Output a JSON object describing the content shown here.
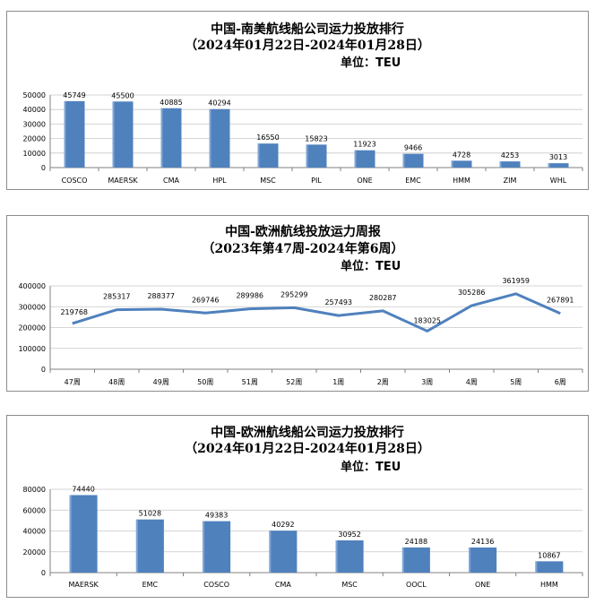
{
  "chart_data": [
    {
      "type": "bar",
      "title": "中国-南美航线船公司运力投放排行",
      "subtitle": "（2024年01月22日-2024年01月28日）",
      "unit": "单位：TEU",
      "categories": [
        "COSCO",
        "MAERSK",
        "CMA",
        "HPL",
        "MSC",
        "PIL",
        "ONE",
        "EMC",
        "HMM",
        "ZIM",
        "WHL"
      ],
      "values": [
        45749,
        45500,
        40885,
        40294,
        16550,
        15823,
        11923,
        9466,
        4728,
        4253,
        3013
      ],
      "ylim": [
        0,
        50000
      ],
      "yticks": [
        0,
        10000,
        20000,
        30000,
        40000,
        50000
      ],
      "grid": true,
      "color": "#4f81bd"
    },
    {
      "type": "line",
      "title": "中国-欧洲航线投放运力周报",
      "subtitle": "（2023年第47周-2024年第6周）",
      "unit": "单位：TEU",
      "categories": [
        "47周",
        "48周",
        "49周",
        "50周",
        "51周",
        "52周",
        "1周",
        "2周",
        "3周",
        "4周",
        "5周",
        "6周"
      ],
      "values": [
        219768,
        285317,
        288377,
        269746,
        289986,
        295299,
        257493,
        280287,
        183025,
        305286,
        361959,
        267891
      ],
      "ylim": [
        0,
        400000
      ],
      "yticks": [
        0,
        100000,
        200000,
        300000,
        400000
      ],
      "grid": true,
      "color": "#4f81bd"
    },
    {
      "type": "bar",
      "title": "中国-欧洲航线船公司运力投放排行",
      "subtitle": "（2024年01月22日-2024年01月28日）",
      "unit": "单位：TEU",
      "categories": [
        "MAERSK",
        "EMC",
        "COSCO",
        "CMA",
        "MSC",
        "OOCL",
        "ONE",
        "HMM"
      ],
      "values": [
        74440,
        51028,
        49383,
        40292,
        30952,
        24188,
        24136,
        10867
      ],
      "ylim": [
        0,
        80000
      ],
      "yticks": [
        0,
        20000,
        40000,
        60000,
        80000
      ],
      "grid": true,
      "color": "#4f81bd"
    }
  ]
}
